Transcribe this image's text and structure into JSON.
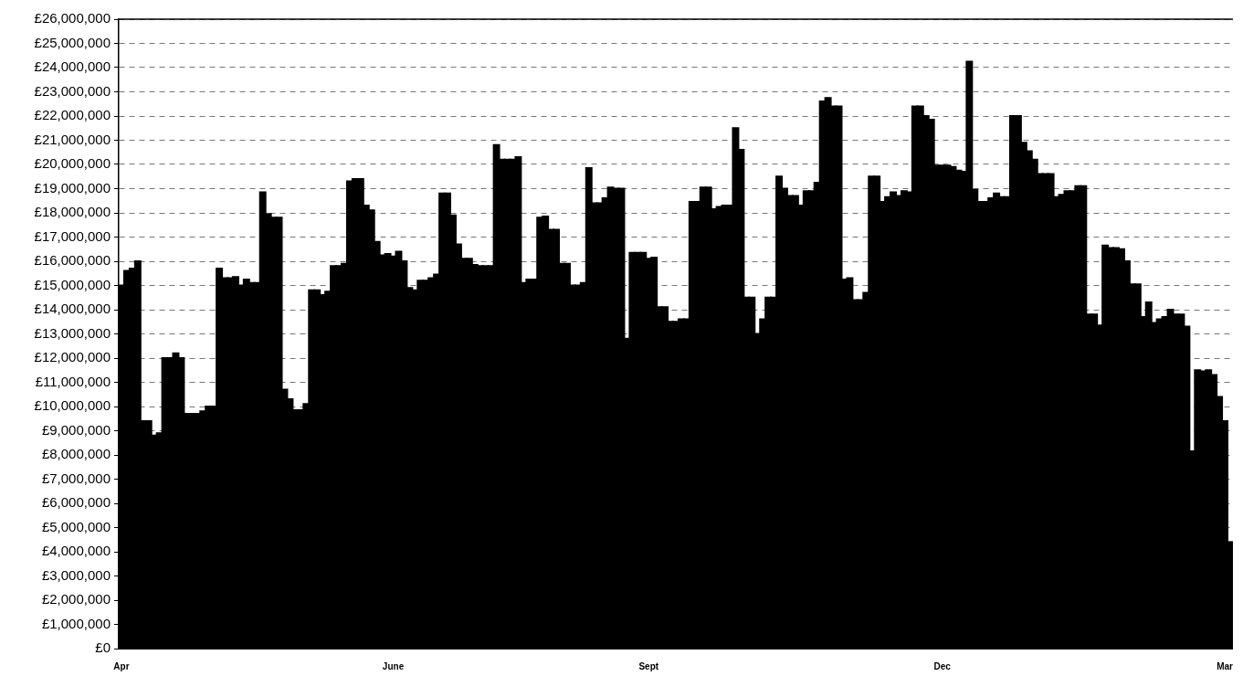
{
  "chart_data": {
    "type": "bar",
    "categories": [
      "Apr",
      null,
      null,
      null,
      null,
      null,
      null,
      null,
      null,
      null,
      null,
      null,
      null,
      null,
      null,
      null,
      null,
      null,
      null,
      null,
      null,
      null,
      null,
      null,
      null,
      null,
      null,
      null,
      null,
      null,
      null,
      null,
      null,
      null,
      null,
      null,
      null,
      null,
      null,
      null,
      null,
      null,
      null,
      null,
      null,
      null,
      null,
      null,
      null,
      null,
      "June",
      null,
      null,
      null,
      null,
      null,
      null,
      null,
      null,
      null,
      null,
      null,
      null,
      null,
      null,
      null,
      null,
      null,
      null,
      null,
      null,
      null,
      null,
      null,
      null,
      null,
      null,
      null,
      null,
      null,
      null,
      null,
      null,
      null,
      null,
      null,
      null,
      null,
      null,
      null,
      null,
      null,
      null,
      null,
      null,
      null,
      null,
      "Sept",
      null,
      null,
      null,
      null,
      null,
      null,
      null,
      null,
      null,
      null,
      null,
      null,
      null,
      null,
      null,
      null,
      null,
      null,
      null,
      null,
      null,
      null,
      null,
      null,
      null,
      null,
      null,
      null,
      null,
      null,
      null,
      null,
      null,
      null,
      null,
      null,
      null,
      null,
      null,
      null,
      null,
      null,
      null,
      null,
      null,
      null,
      null,
      null,
      null,
      null,
      null,
      null,
      null,
      "Dec",
      null,
      null,
      null,
      null,
      null,
      null,
      null,
      null,
      null,
      null,
      null,
      null,
      null,
      null,
      null,
      null,
      null,
      null,
      null,
      null,
      null,
      null,
      null,
      null,
      null,
      null,
      null,
      null,
      null,
      null,
      null,
      null,
      null,
      null,
      null,
      null,
      null,
      null,
      null,
      null,
      null,
      null,
      null,
      null,
      null,
      null,
      null,
      null,
      null,
      null,
      null,
      "Mar",
      null
    ],
    "values": [
      15000000,
      15600000,
      15700000,
      16000000,
      9400000,
      9400000,
      8800000,
      8900000,
      12000000,
      12000000,
      12200000,
      12000000,
      9700000,
      9700000,
      9700000,
      9800000,
      10000000,
      10000000,
      15700000,
      15300000,
      15300000,
      15350000,
      15000000,
      15250000,
      15100000,
      15100000,
      18850000,
      17950000,
      17800000,
      17800000,
      10700000,
      10300000,
      9850000,
      9850000,
      10100000,
      14800000,
      14800000,
      14600000,
      14750000,
      15800000,
      15800000,
      15900000,
      19300000,
      19400000,
      19400000,
      18300000,
      18100000,
      16800000,
      16250000,
      16300000,
      16200000,
      16400000,
      16000000,
      14900000,
      14800000,
      15200000,
      15200000,
      15300000,
      15450000,
      18800000,
      18800000,
      17900000,
      16700000,
      16100000,
      16100000,
      15850000,
      15800000,
      15800000,
      15800000,
      20800000,
      20200000,
      20200000,
      20200000,
      20300000,
      15100000,
      15250000,
      15250000,
      17800000,
      17850000,
      17300000,
      17300000,
      15900000,
      15900000,
      15000000,
      15000000,
      15100000,
      19850000,
      18400000,
      18400000,
      18600000,
      19050000,
      19000000,
      19000000,
      12800000,
      16350000,
      16350000,
      16350000,
      16100000,
      16150000,
      14100000,
      14100000,
      13500000,
      13500000,
      13600000,
      13600000,
      18450000,
      18450000,
      19050000,
      19050000,
      18150000,
      18250000,
      18300000,
      18300000,
      21500000,
      20600000,
      14500000,
      14500000,
      13000000,
      13600000,
      14500000,
      14500000,
      19500000,
      19000000,
      18700000,
      18700000,
      18300000,
      18900000,
      18900000,
      19250000,
      22600000,
      22750000,
      22400000,
      22400000,
      15250000,
      15300000,
      14400000,
      14400000,
      14700000,
      19500000,
      19500000,
      18450000,
      18650000,
      18850000,
      18700000,
      18900000,
      18850000,
      22400000,
      22400000,
      22000000,
      21850000,
      19950000,
      19950000,
      19950000,
      19900000,
      19750000,
      19700000,
      24250000,
      18950000,
      18450000,
      18450000,
      18600000,
      18800000,
      18650000,
      18650000,
      22000000,
      22000000,
      20900000,
      20550000,
      20200000,
      19600000,
      19600000,
      19600000,
      18650000,
      18750000,
      18900000,
      18900000,
      19100000,
      19100000,
      13800000,
      13800000,
      13350000,
      16650000,
      16550000,
      16550000,
      16500000,
      16000000,
      15050000,
      15050000,
      13700000,
      14300000,
      13450000,
      13600000,
      13700000,
      14000000,
      13800000,
      13800000,
      13300000,
      8150000,
      11500000,
      11450000,
      11500000,
      11300000,
      10400000,
      9400000,
      4400000
    ],
    "color": "#000000",
    "ylim": [
      0,
      26000000
    ],
    "yticks": [
      {
        "value": 0,
        "label": "£0"
      },
      {
        "value": 1000000,
        "label": "£1,000,000"
      },
      {
        "value": 2000000,
        "label": "£2,000,000"
      },
      {
        "value": 3000000,
        "label": "£3,000,000"
      },
      {
        "value": 4000000,
        "label": "£4,000,000"
      },
      {
        "value": 5000000,
        "label": "£5,000,000"
      },
      {
        "value": 6000000,
        "label": "£6,000,000"
      },
      {
        "value": 7000000,
        "label": "£7,000,000"
      },
      {
        "value": 8000000,
        "label": "£8,000,000"
      },
      {
        "value": 9000000,
        "label": "£9,000,000"
      },
      {
        "value": 10000000,
        "label": "£10,000,000"
      },
      {
        "value": 11000000,
        "label": "£11,000,000"
      },
      {
        "value": 12000000,
        "label": "£12,000,000"
      },
      {
        "value": 13000000,
        "label": "£13,000,000"
      },
      {
        "value": 14000000,
        "label": "£14,000,000"
      },
      {
        "value": 15000000,
        "label": "£15,000,000"
      },
      {
        "value": 16000000,
        "label": "£16,000,000"
      },
      {
        "value": 17000000,
        "label": "£17,000,000"
      },
      {
        "value": 18000000,
        "label": "£18,000,000"
      },
      {
        "value": 19000000,
        "label": "£19,000,000"
      },
      {
        "value": 20000000,
        "label": "£20,000,000"
      },
      {
        "value": 21000000,
        "label": "£21,000,000"
      },
      {
        "value": 22000000,
        "label": "£22,000,000"
      },
      {
        "value": 23000000,
        "label": "£23,000,000"
      },
      {
        "value": 24000000,
        "label": "£24,000,000"
      },
      {
        "value": 25000000,
        "label": "£25,000,000"
      },
      {
        "value": 26000000,
        "label": "£26,000,000"
      }
    ],
    "grid": "y",
    "legend": false
  }
}
